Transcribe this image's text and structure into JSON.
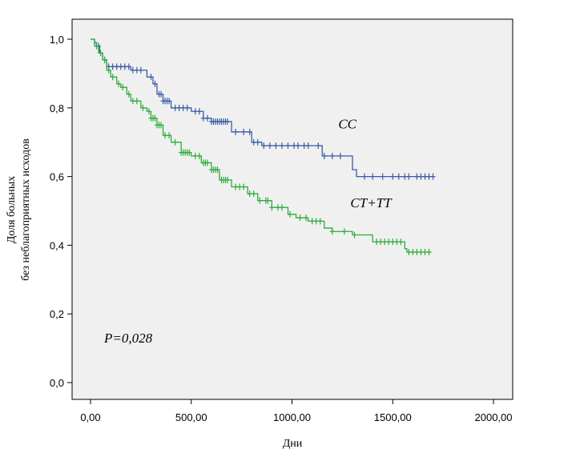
{
  "chart_data": {
    "type": "line",
    "xlabel": "Дни",
    "ylabel_line1": "Доля больных",
    "ylabel_line2": "без неблагоприятных исходов",
    "xlim": [
      0,
      2000
    ],
    "ylim": [
      0,
      1
    ],
    "x_ticks": [
      "0,00",
      "500,00",
      "1000,00",
      "1500,00",
      "2000,00"
    ],
    "y_ticks": [
      "0,0",
      "0,2",
      "0,4",
      "0,6",
      "0,8",
      "1,0"
    ],
    "grid": false,
    "annotations": {
      "p_value": "P=0,028"
    },
    "series": [
      {
        "name": "CC",
        "color": "#3a5ba6",
        "steps": [
          [
            0,
            1.0
          ],
          [
            20,
            0.99
          ],
          [
            30,
            0.98
          ],
          [
            45,
            0.96
          ],
          [
            60,
            0.94
          ],
          [
            80,
            0.92
          ],
          [
            200,
            0.91
          ],
          [
            280,
            0.89
          ],
          [
            310,
            0.87
          ],
          [
            330,
            0.84
          ],
          [
            360,
            0.82
          ],
          [
            400,
            0.8
          ],
          [
            500,
            0.79
          ],
          [
            560,
            0.77
          ],
          [
            600,
            0.76
          ],
          [
            700,
            0.73
          ],
          [
            800,
            0.7
          ],
          [
            850,
            0.69
          ],
          [
            1150,
            0.66
          ],
          [
            1300,
            0.62
          ],
          [
            1320,
            0.6
          ],
          [
            1700,
            0.6
          ]
        ],
        "censors": [
          40,
          70,
          90,
          110,
          130,
          150,
          170,
          190,
          210,
          230,
          250,
          300,
          320,
          340,
          350,
          360,
          370,
          380,
          390,
          420,
          440,
          460,
          480,
          520,
          540,
          560,
          580,
          600,
          610,
          620,
          630,
          640,
          650,
          660,
          670,
          680,
          720,
          760,
          790,
          810,
          830,
          860,
          890,
          920,
          950,
          980,
          1010,
          1030,
          1060,
          1080,
          1130,
          1160,
          1200,
          1240,
          1360,
          1400,
          1450,
          1500,
          1530,
          1560,
          1580,
          1620,
          1640,
          1660,
          1680,
          1700
        ]
      },
      {
        "name": "CT+TT",
        "color": "#2eab3c",
        "steps": [
          [
            0,
            1.0
          ],
          [
            20,
            0.98
          ],
          [
            40,
            0.96
          ],
          [
            60,
            0.94
          ],
          [
            80,
            0.91
          ],
          [
            100,
            0.89
          ],
          [
            130,
            0.87
          ],
          [
            150,
            0.86
          ],
          [
            180,
            0.84
          ],
          [
            200,
            0.82
          ],
          [
            250,
            0.8
          ],
          [
            280,
            0.79
          ],
          [
            300,
            0.77
          ],
          [
            330,
            0.75
          ],
          [
            360,
            0.72
          ],
          [
            400,
            0.7
          ],
          [
            450,
            0.67
          ],
          [
            500,
            0.66
          ],
          [
            550,
            0.64
          ],
          [
            600,
            0.62
          ],
          [
            640,
            0.59
          ],
          [
            700,
            0.57
          ],
          [
            780,
            0.55
          ],
          [
            830,
            0.53
          ],
          [
            900,
            0.51
          ],
          [
            980,
            0.49
          ],
          [
            1020,
            0.48
          ],
          [
            1080,
            0.47
          ],
          [
            1160,
            0.45
          ],
          [
            1200,
            0.44
          ],
          [
            1300,
            0.43
          ],
          [
            1400,
            0.41
          ],
          [
            1560,
            0.39
          ],
          [
            1570,
            0.38
          ],
          [
            1690,
            0.38
          ]
        ],
        "censors": [
          30,
          50,
          70,
          90,
          110,
          140,
          160,
          190,
          210,
          230,
          260,
          290,
          300,
          310,
          320,
          330,
          340,
          350,
          370,
          390,
          420,
          450,
          460,
          470,
          480,
          490,
          520,
          540,
          560,
          570,
          580,
          600,
          610,
          620,
          630,
          650,
          660,
          670,
          680,
          720,
          740,
          760,
          790,
          810,
          840,
          870,
          880,
          900,
          930,
          950,
          990,
          1040,
          1070,
          1100,
          1120,
          1140,
          1200,
          1260,
          1310,
          1420,
          1440,
          1460,
          1480,
          1500,
          1520,
          1540,
          1580,
          1600,
          1620,
          1640,
          1660,
          1680
        ]
      }
    ],
    "series_labels": [
      {
        "text": "CC",
        "x": 1230,
        "y": 0.74
      },
      {
        "text": "CT+TT",
        "x": 1290,
        "y": 0.51
      }
    ]
  }
}
